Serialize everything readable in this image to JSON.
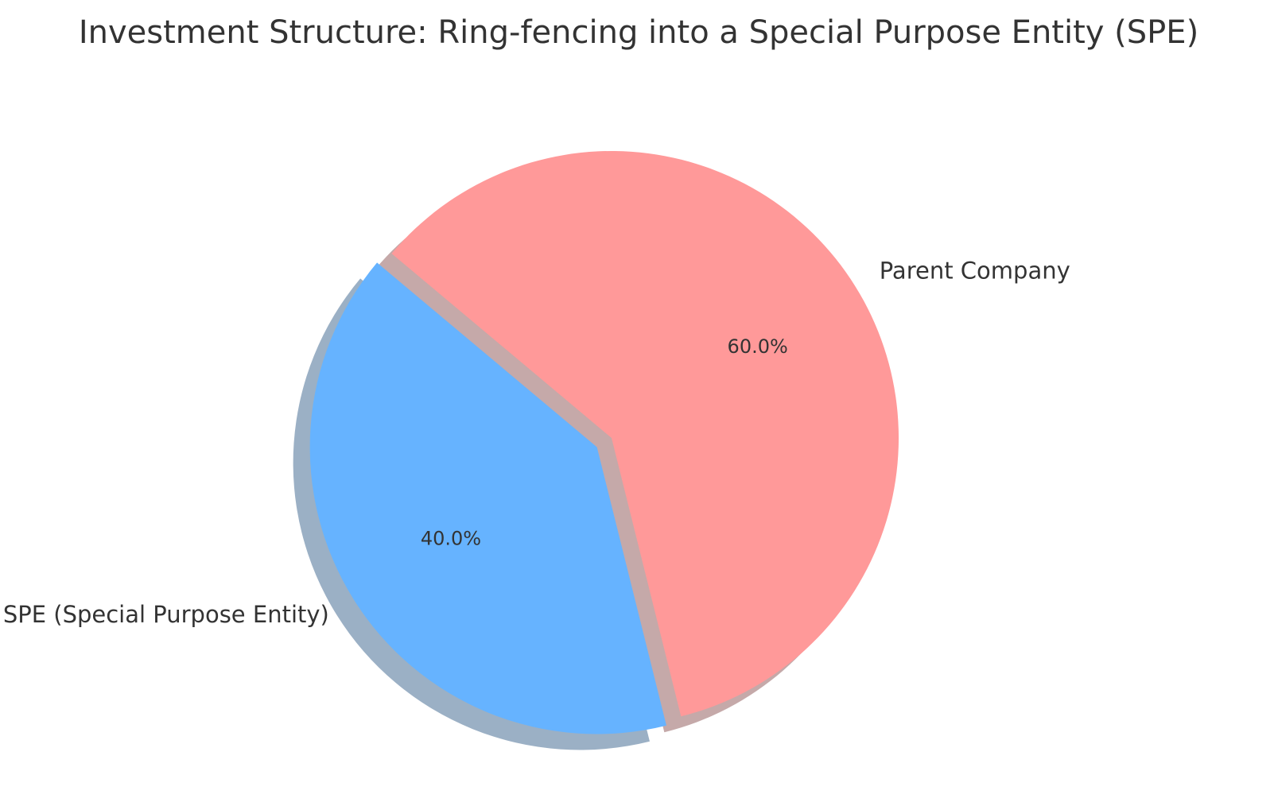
{
  "chart_data": {
    "type": "pie",
    "title": "Investment Structure: Ring-fencing into a Special Purpose Entity (SPE)",
    "slices": [
      {
        "label": "SPE (Special Purpose Entity)",
        "value": 40.0,
        "pct_label": "40.0%",
        "color": "#66b3ff",
        "exploded": true
      },
      {
        "label": "Parent Company",
        "value": 60.0,
        "pct_label": "60.0%",
        "color": "#ff9999",
        "exploded": false
      }
    ],
    "shadow": true,
    "start_angle_deg": 140,
    "direction": "counterclockwise",
    "legend": "none"
  }
}
